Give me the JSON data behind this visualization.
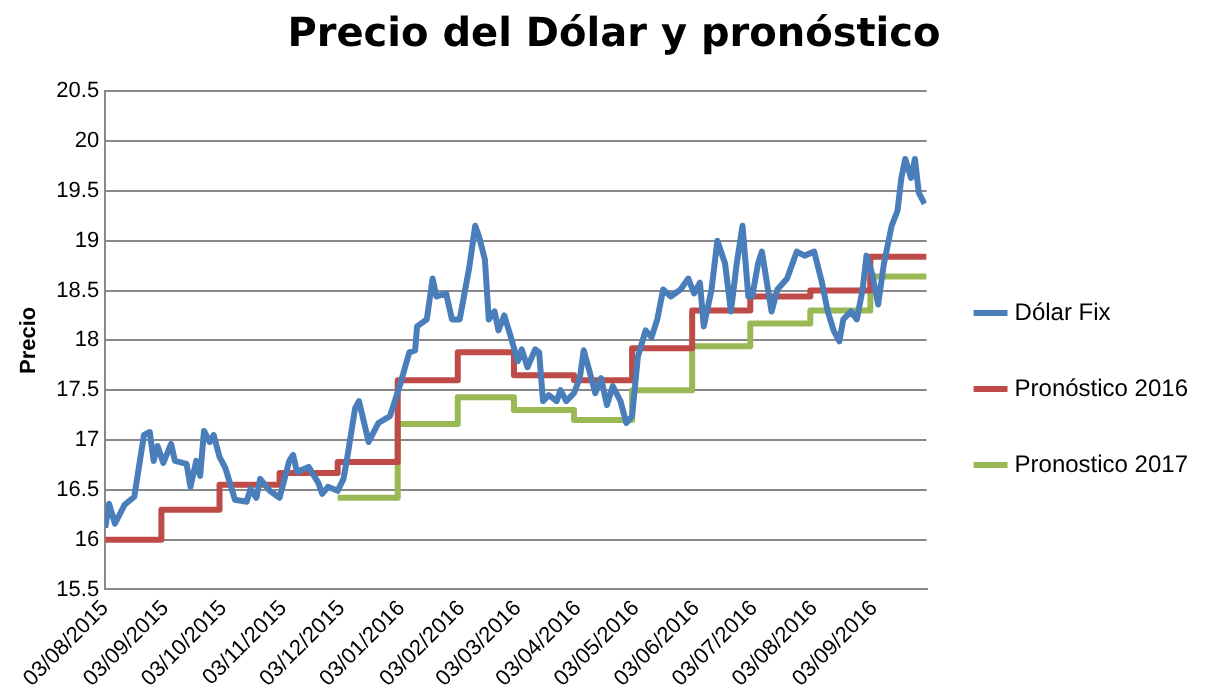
{
  "chart_data": {
    "type": "line",
    "title": "Precio del Dólar y pronóstico",
    "ylabel": "Precio",
    "xlim": [
      "2015-08-03",
      "2016-09-30"
    ],
    "xticks": [
      {
        "value": "2015-08-03",
        "label": "03/08/2015"
      },
      {
        "value": "2015-09-03",
        "label": "03/09/2015"
      },
      {
        "value": "2015-10-03",
        "label": "03/10/2015"
      },
      {
        "value": "2015-11-03",
        "label": "03/11/2015"
      },
      {
        "value": "2015-12-03",
        "label": "03/12/2015"
      },
      {
        "value": "2016-01-03",
        "label": "03/01/2016"
      },
      {
        "value": "2016-02-03",
        "label": "03/02/2016"
      },
      {
        "value": "2016-03-03",
        "label": "03/03/2016"
      },
      {
        "value": "2016-04-03",
        "label": "03/04/2016"
      },
      {
        "value": "2016-05-03",
        "label": "03/05/2016"
      },
      {
        "value": "2016-06-03",
        "label": "03/06/2016"
      },
      {
        "value": "2016-07-03",
        "label": "03/07/2016"
      },
      {
        "value": "2016-08-03",
        "label": "03/08/2016"
      },
      {
        "value": "2016-09-03",
        "label": "03/09/2016"
      }
    ],
    "ylim": [
      15.5,
      20.5
    ],
    "yticks": [
      15.5,
      16,
      16.5,
      17,
      17.5,
      18,
      18.5,
      19,
      19.5,
      20,
      20.5
    ],
    "grid": "y",
    "legend": "right",
    "marker": "none",
    "series": [
      {
        "name": "Dólar Fix",
        "color": "#4a7ebb",
        "x": [
          "2015-08-03",
          "2015-08-05",
          "2015-08-08",
          "2015-08-13",
          "2015-08-18",
          "2015-08-23",
          "2015-08-26",
          "2015-08-28",
          "2015-08-30",
          "2015-09-02",
          "2015-09-06",
          "2015-09-08",
          "2015-09-14",
          "2015-09-16",
          "2015-09-19",
          "2015-09-21",
          "2015-09-23",
          "2015-09-26",
          "2015-09-28",
          "2015-10-01",
          "2015-10-04",
          "2015-10-09",
          "2015-10-15",
          "2015-10-17",
          "2015-10-20",
          "2015-10-22",
          "2015-10-27",
          "2015-11-01",
          "2015-11-06",
          "2015-11-08",
          "2015-11-10",
          "2015-11-16",
          "2015-11-21",
          "2015-11-23",
          "2015-11-26",
          "2015-12-01",
          "2015-12-04",
          "2015-12-06",
          "2015-12-10",
          "2015-12-12",
          "2015-12-17",
          "2015-12-22",
          "2015-12-28",
          "2016-01-02",
          "2016-01-07",
          "2016-01-10",
          "2016-01-11",
          "2016-01-16",
          "2016-01-19",
          "2016-01-21",
          "2016-01-26",
          "2016-01-29",
          "2016-02-02",
          "2016-02-07",
          "2016-02-10",
          "2016-02-12",
          "2016-02-15",
          "2016-02-17",
          "2016-02-20",
          "2016-02-22",
          "2016-02-25",
          "2016-02-28",
          "2016-03-03",
          "2016-03-05",
          "2016-03-08",
          "2016-03-12",
          "2016-03-14",
          "2016-03-16",
          "2016-03-19",
          "2016-03-23",
          "2016-03-25",
          "2016-03-28",
          "2016-04-01",
          "2016-04-04",
          "2016-04-06",
          "2016-04-09",
          "2016-04-12",
          "2016-04-15",
          "2016-04-18",
          "2016-04-21",
          "2016-04-25",
          "2016-04-28",
          "2016-05-01",
          "2016-05-04",
          "2016-05-08",
          "2016-05-11",
          "2016-05-14",
          "2016-05-17",
          "2016-05-21",
          "2016-05-26",
          "2016-05-30",
          "2016-06-02",
          "2016-06-05",
          "2016-06-07",
          "2016-06-11",
          "2016-06-14",
          "2016-06-18",
          "2016-06-21",
          "2016-06-24",
          "2016-06-27",
          "2016-06-30",
          "2016-07-02",
          "2016-07-05",
          "2016-07-07",
          "2016-07-12",
          "2016-07-15",
          "2016-07-20",
          "2016-07-25",
          "2016-07-29",
          "2016-08-03",
          "2016-08-07",
          "2016-08-10",
          "2016-08-13",
          "2016-08-16",
          "2016-08-18",
          "2016-08-22",
          "2016-08-25",
          "2016-08-28",
          "2016-08-30",
          "2016-09-02",
          "2016-09-05",
          "2016-09-08",
          "2016-09-12",
          "2016-09-15",
          "2016-09-17",
          "2016-09-19",
          "2016-09-22",
          "2016-09-24",
          "2016-09-26",
          "2016-09-29"
        ],
        "values": [
          16.12,
          16.36,
          16.16,
          16.35,
          16.43,
          17.05,
          17.08,
          16.79,
          16.94,
          16.77,
          16.96,
          16.79,
          16.76,
          16.53,
          16.79,
          16.64,
          17.09,
          16.98,
          17.05,
          16.83,
          16.72,
          16.4,
          16.38,
          16.51,
          16.42,
          16.61,
          16.49,
          16.42,
          16.79,
          16.85,
          16.68,
          16.73,
          16.57,
          16.46,
          16.53,
          16.49,
          16.61,
          16.83,
          17.32,
          17.39,
          16.98,
          17.17,
          17.24,
          17.54,
          17.88,
          17.9,
          18.14,
          18.21,
          18.62,
          18.44,
          18.47,
          18.21,
          18.21,
          18.74,
          19.15,
          19.04,
          18.81,
          18.21,
          18.29,
          18.1,
          18.25,
          18.06,
          17.79,
          17.91,
          17.73,
          17.91,
          17.88,
          17.39,
          17.45,
          17.39,
          17.5,
          17.39,
          17.47,
          17.62,
          17.9,
          17.69,
          17.47,
          17.62,
          17.35,
          17.54,
          17.39,
          17.17,
          17.24,
          17.84,
          18.1,
          18.03,
          18.21,
          18.51,
          18.44,
          18.51,
          18.62,
          18.47,
          18.58,
          18.14,
          18.51,
          19.0,
          18.77,
          18.29,
          18.77,
          19.15,
          18.44,
          18.44,
          18.77,
          18.89,
          18.29,
          18.51,
          18.62,
          18.89,
          18.85,
          18.89,
          18.58,
          18.29,
          18.1,
          17.99,
          18.21,
          18.29,
          18.21,
          18.51,
          18.85,
          18.66,
          18.36,
          18.77,
          19.15,
          19.3,
          19.63,
          19.82,
          19.63,
          19.82,
          19.48,
          19.37
        ]
      },
      {
        "name": "Pronóstico 2016",
        "color": "#be4b48",
        "type": "step",
        "x": [
          "2015-08-03",
          "2015-09-01",
          "2015-10-01",
          "2015-11-01",
          "2015-12-01",
          "2016-01-01",
          "2016-02-01",
          "2016-03-01",
          "2016-04-01",
          "2016-05-01",
          "2016-06-01",
          "2016-07-01",
          "2016-08-01",
          "2016-09-01",
          "2016-09-30"
        ],
        "values": [
          16.0,
          16.3,
          16.55,
          16.67,
          16.78,
          17.6,
          17.88,
          17.65,
          17.6,
          17.92,
          18.3,
          18.44,
          18.5,
          18.84,
          18.84
        ]
      },
      {
        "name": "Pronostico 2017",
        "color": "#98b954",
        "type": "step",
        "x": [
          "2015-12-01",
          "2016-01-01",
          "2016-02-01",
          "2016-03-01",
          "2016-04-01",
          "2016-05-01",
          "2016-06-01",
          "2016-07-01",
          "2016-08-01",
          "2016-09-01",
          "2016-09-30"
        ],
        "values": [
          16.42,
          17.16,
          17.43,
          17.3,
          17.2,
          17.5,
          17.94,
          18.17,
          18.3,
          18.64,
          18.64
        ]
      }
    ]
  }
}
